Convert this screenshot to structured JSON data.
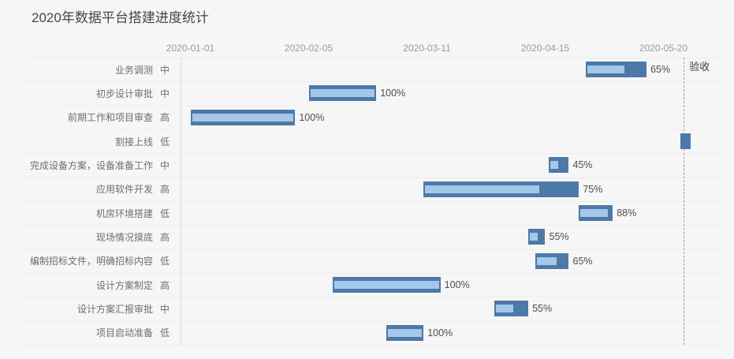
{
  "title": "2020年数据平台搭建进度统计",
  "colors": {
    "background": "#f6f6f6",
    "bar_fill": "#4d79a7",
    "bar_progress_fill": "#a3c8e9",
    "title_color": "#464646",
    "axis_label_color": "#9b9b9b",
    "task_label_color": "#6e6e6e",
    "percent_label_color": "#4d4d4d",
    "markline_color": "#9c9c9c"
  },
  "chart_data": {
    "type": "bar",
    "subtype": "gantt",
    "title": "2020年数据平台搭建进度统计",
    "legend": null,
    "grid": "horizontal-row-separators-only",
    "x_axis": {
      "type": "time",
      "position": "top",
      "ticks": [
        "2020-01-01",
        "2020-02-05",
        "2020-03-11",
        "2020-04-15",
        "2020-05-20"
      ],
      "tick_interval_days": 35
    },
    "mark_line": {
      "label": "验收",
      "date": "2020-05-26",
      "style": "dashed"
    },
    "tasks": [
      {
        "name": "业务调测",
        "priority": "中",
        "start": "2020-04-27",
        "end": "2020-05-15",
        "progress_pct": 65,
        "progress_label": "65%"
      },
      {
        "name": "初步设计审批",
        "priority": "中",
        "start": "2020-02-05",
        "end": "2020-02-25",
        "progress_pct": 100,
        "progress_label": "100%"
      },
      {
        "name": "前期工作和项目审查",
        "priority": "高",
        "start": "2020-01-01",
        "end": "2020-02-01",
        "progress_pct": 100,
        "progress_label": "100%"
      },
      {
        "name": "割接上线",
        "priority": "低",
        "start": "2020-05-25",
        "end": "2020-05-28",
        "progress_pct": 0,
        "progress_label": ""
      },
      {
        "name": "完成设备方案，设备准备工作",
        "priority": "中",
        "start": "2020-04-16",
        "end": "2020-04-22",
        "progress_pct": 45,
        "progress_label": "45%"
      },
      {
        "name": "应用软件开发",
        "priority": "高",
        "start": "2020-03-10",
        "end": "2020-04-25",
        "progress_pct": 75,
        "progress_label": "75%"
      },
      {
        "name": "机房环境搭建",
        "priority": "低",
        "start": "2020-04-25",
        "end": "2020-05-05",
        "progress_pct": 88,
        "progress_label": "88%"
      },
      {
        "name": "现场情况摸底",
        "priority": "高",
        "start": "2020-04-10",
        "end": "2020-04-15",
        "progress_pct": 55,
        "progress_label": "55%"
      },
      {
        "name": "编制招标文件，明确招标内容",
        "priority": "低",
        "start": "2020-04-12",
        "end": "2020-04-22",
        "progress_pct": 65,
        "progress_label": "65%"
      },
      {
        "name": "设计方案制定",
        "priority": "高",
        "start": "2020-02-12",
        "end": "2020-03-15",
        "progress_pct": 100,
        "progress_label": "100%"
      },
      {
        "name": "设计方案汇报审批",
        "priority": "中",
        "start": "2020-03-31",
        "end": "2020-04-10",
        "progress_pct": 55,
        "progress_label": "55%"
      },
      {
        "name": "项目启动准备",
        "priority": "低",
        "start": "2020-02-28",
        "end": "2020-03-10",
        "progress_pct": 100,
        "progress_label": "100%"
      }
    ]
  }
}
